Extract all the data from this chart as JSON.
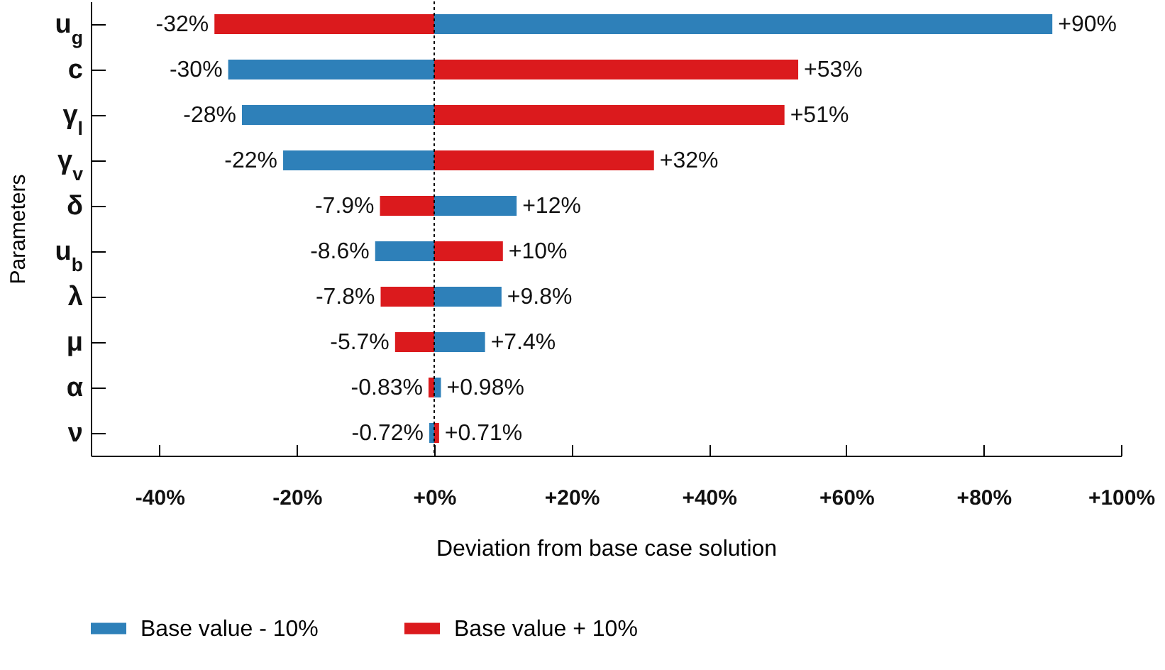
{
  "chart_data": {
    "type": "bar",
    "orientation": "horizontal",
    "xlabel": "Deviation from base case solution",
    "ylabel": "Parameters",
    "categories": [
      "u$_{g}$",
      "c",
      "γ$_{l}$",
      "γ$_{v}$",
      "δ",
      "u$_{b}$",
      "λ",
      "μ",
      "α",
      "ν"
    ],
    "series": [
      {
        "name": "Base value - 10%",
        "color": "#2e80b9",
        "values": [
          90,
          -30,
          -28,
          -22,
          12,
          -8.6,
          9.8,
          7.4,
          0.98,
          -0.72
        ],
        "value_labels": [
          "+90%",
          "-30%",
          "-28%",
          "-22%",
          "+12%",
          "-8.6%",
          "+9.8%",
          "+7.4%",
          "+0.98%",
          "-0.72%"
        ]
      },
      {
        "name": "Base value + 10%",
        "color": "#db1a1d",
        "values": [
          -32,
          53,
          51,
          32,
          -7.9,
          10,
          -7.8,
          -5.7,
          -0.83,
          0.71
        ],
        "value_labels": [
          "-32%",
          "+53%",
          "+51%",
          "+32%",
          "-7.9%",
          "+10%",
          "-7.8%",
          "-5.7%",
          "-0.83%",
          "+0.71%"
        ]
      }
    ],
    "xlim": [
      -50,
      100
    ],
    "xticks": [
      {
        "value": -40,
        "label": "-40%"
      },
      {
        "value": -20,
        "label": "-20%"
      },
      {
        "value": 0,
        "label": "+0%"
      },
      {
        "value": 20,
        "label": "+20%"
      },
      {
        "value": 40,
        "label": "+40%"
      },
      {
        "value": 60,
        "label": "+60%"
      },
      {
        "value": 80,
        "label": "+80%"
      },
      {
        "value": 100,
        "label": "+100%"
      }
    ],
    "ref_lines": [
      {
        "axis": "x",
        "value": 0,
        "line_style": "dotted"
      }
    ],
    "stacked": true,
    "grid": false,
    "legend": "bottom"
  }
}
